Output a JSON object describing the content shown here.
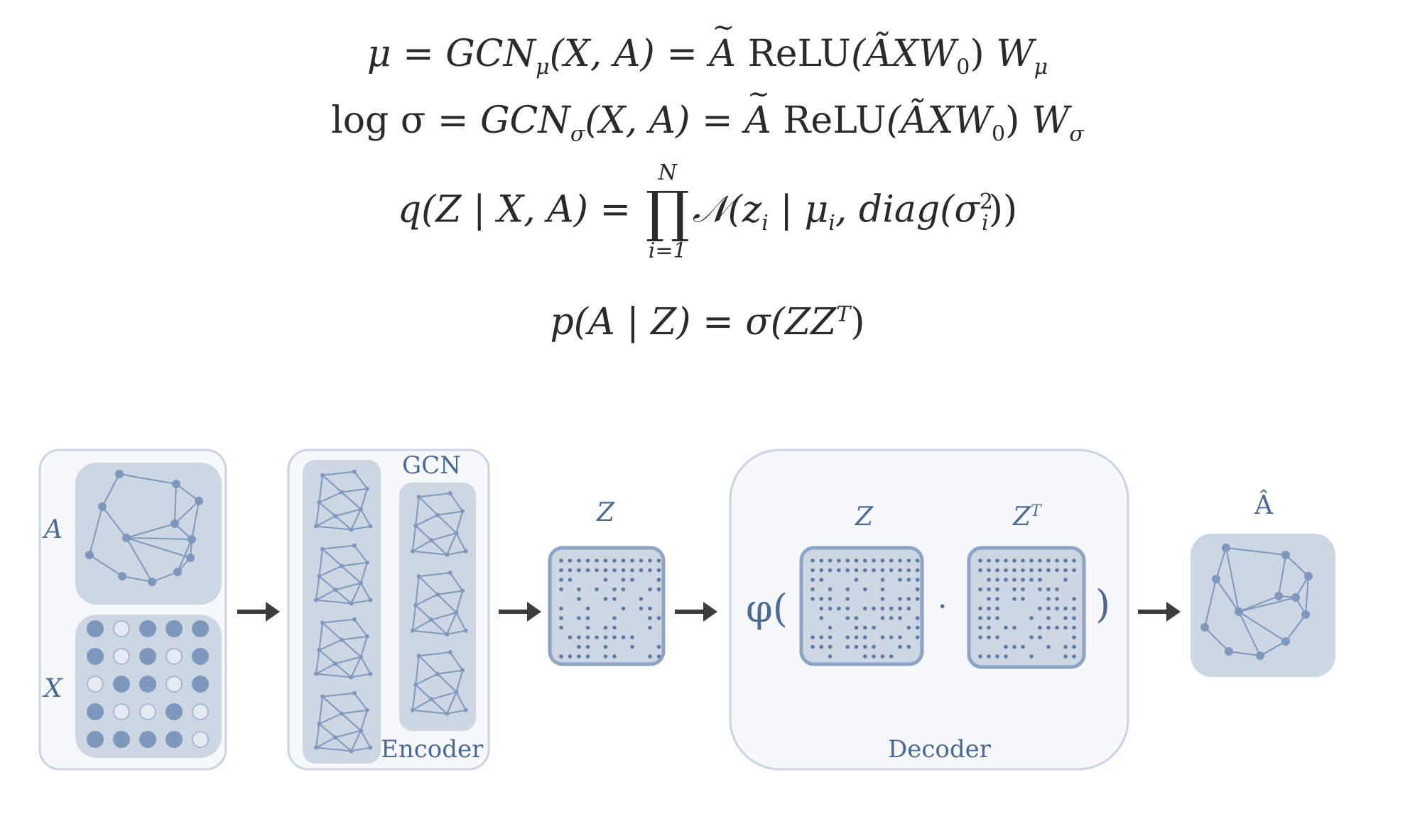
{
  "equations": {
    "mu": {
      "lhs": "μ",
      "gcn": "GCN",
      "sub": "μ",
      "args": "(X, A)",
      "relu": "ReLU",
      "inner": "(ÃXW",
      "w0sub": "0",
      "close": ")",
      "w": "W",
      "wsub": "μ"
    },
    "logsigma": {
      "lhs": "log σ",
      "gcn": "GCN",
      "sub": "σ",
      "args": "(X, A)",
      "relu": "ReLU",
      "inner": "(ÃXW",
      "w0sub": "0",
      "close": ")",
      "w": "W",
      "wsub": "σ"
    },
    "q": {
      "lhs": "q(Z | X, A) =",
      "upper": "N",
      "lower": "i=1",
      "rhs": "𝒩(z",
      "zsub": "i",
      "mid": " | μ",
      "musub": "i",
      "diag": ", diag(σ",
      "sig_sup": "2",
      "sig_sub": "i",
      "end": "))"
    },
    "p": {
      "text": "p(A | Z) = σ(ZZ",
      "sup": "T",
      "end": ")"
    }
  },
  "diagram": {
    "label_A": "A",
    "label_X": "X",
    "label_gcn": "GCN",
    "label_encoder": "Encoder",
    "label_Z": "Z",
    "label_Z2": "Z",
    "label_ZT": "Z",
    "label_ZT_sup": "T",
    "label_phi": "φ(",
    "label_dot": "·",
    "label_close": ")",
    "label_decoder": "Decoder",
    "label_Ahat": "Â",
    "feature_matrix": [
      [
        1,
        0,
        1,
        1,
        1
      ],
      [
        1,
        0,
        1,
        0,
        1
      ],
      [
        0,
        1,
        1,
        0,
        1
      ],
      [
        1,
        0,
        0,
        1,
        0
      ],
      [
        1,
        1,
        1,
        1,
        0
      ]
    ],
    "colors": {
      "panel_border": "#c8d4e4",
      "panel_fill": "#f6f8fc",
      "tile_fill": "#cdd6e3",
      "node": "#7e98bd",
      "edge": "#7e98bd",
      "arrow": "#3c3c3c",
      "text": "#4a6a94"
    }
  }
}
